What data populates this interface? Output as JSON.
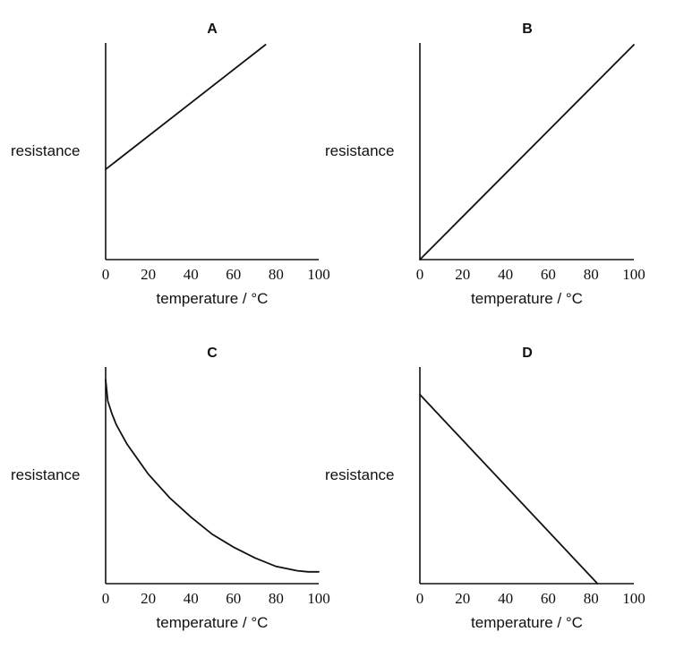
{
  "chart_data": [
    {
      "type": "line",
      "title": "A",
      "xlabel": "temperature / °C",
      "ylabel": "resistance",
      "xlim": [
        0,
        100
      ],
      "xticks": [
        "0",
        "20",
        "40",
        "60",
        "80",
        "100"
      ],
      "ylim": [
        0,
        1
      ],
      "series": [
        {
          "x": [
            0,
            75
          ],
          "y": [
            0.42,
            1.0
          ]
        }
      ]
    },
    {
      "type": "line",
      "title": "B",
      "xlabel": "temperature / °C",
      "ylabel": "resistance",
      "xlim": [
        0,
        100
      ],
      "xticks": [
        "0",
        "20",
        "40",
        "60",
        "80",
        "100"
      ],
      "ylim": [
        0,
        1
      ],
      "series": [
        {
          "x": [
            0,
            100
          ],
          "y": [
            0.0,
            1.0
          ]
        }
      ]
    },
    {
      "type": "line",
      "title": "C",
      "xlabel": "temperature / °C",
      "ylabel": "resistance",
      "xlim": [
        0,
        100
      ],
      "xticks": [
        "0",
        "20",
        "40",
        "60",
        "80",
        "100"
      ],
      "ylim": [
        0,
        1
      ],
      "series": [
        {
          "x": [
            0,
            1,
            3,
            5,
            10,
            15,
            20,
            30,
            40,
            50,
            60,
            70,
            80,
            90,
            95,
            100
          ],
          "y": [
            0.95,
            0.85,
            0.79,
            0.74,
            0.65,
            0.58,
            0.51,
            0.4,
            0.31,
            0.23,
            0.17,
            0.12,
            0.08,
            0.06,
            0.055,
            0.055
          ]
        }
      ]
    },
    {
      "type": "line",
      "title": "D",
      "xlabel": "temperature / °C",
      "ylabel": "resistance",
      "xlim": [
        0,
        100
      ],
      "xticks": [
        "0",
        "20",
        "40",
        "60",
        "80",
        "100"
      ],
      "ylim": [
        0,
        1
      ],
      "series": [
        {
          "x": [
            0,
            83
          ],
          "y": [
            0.88,
            0.0
          ]
        }
      ]
    }
  ]
}
